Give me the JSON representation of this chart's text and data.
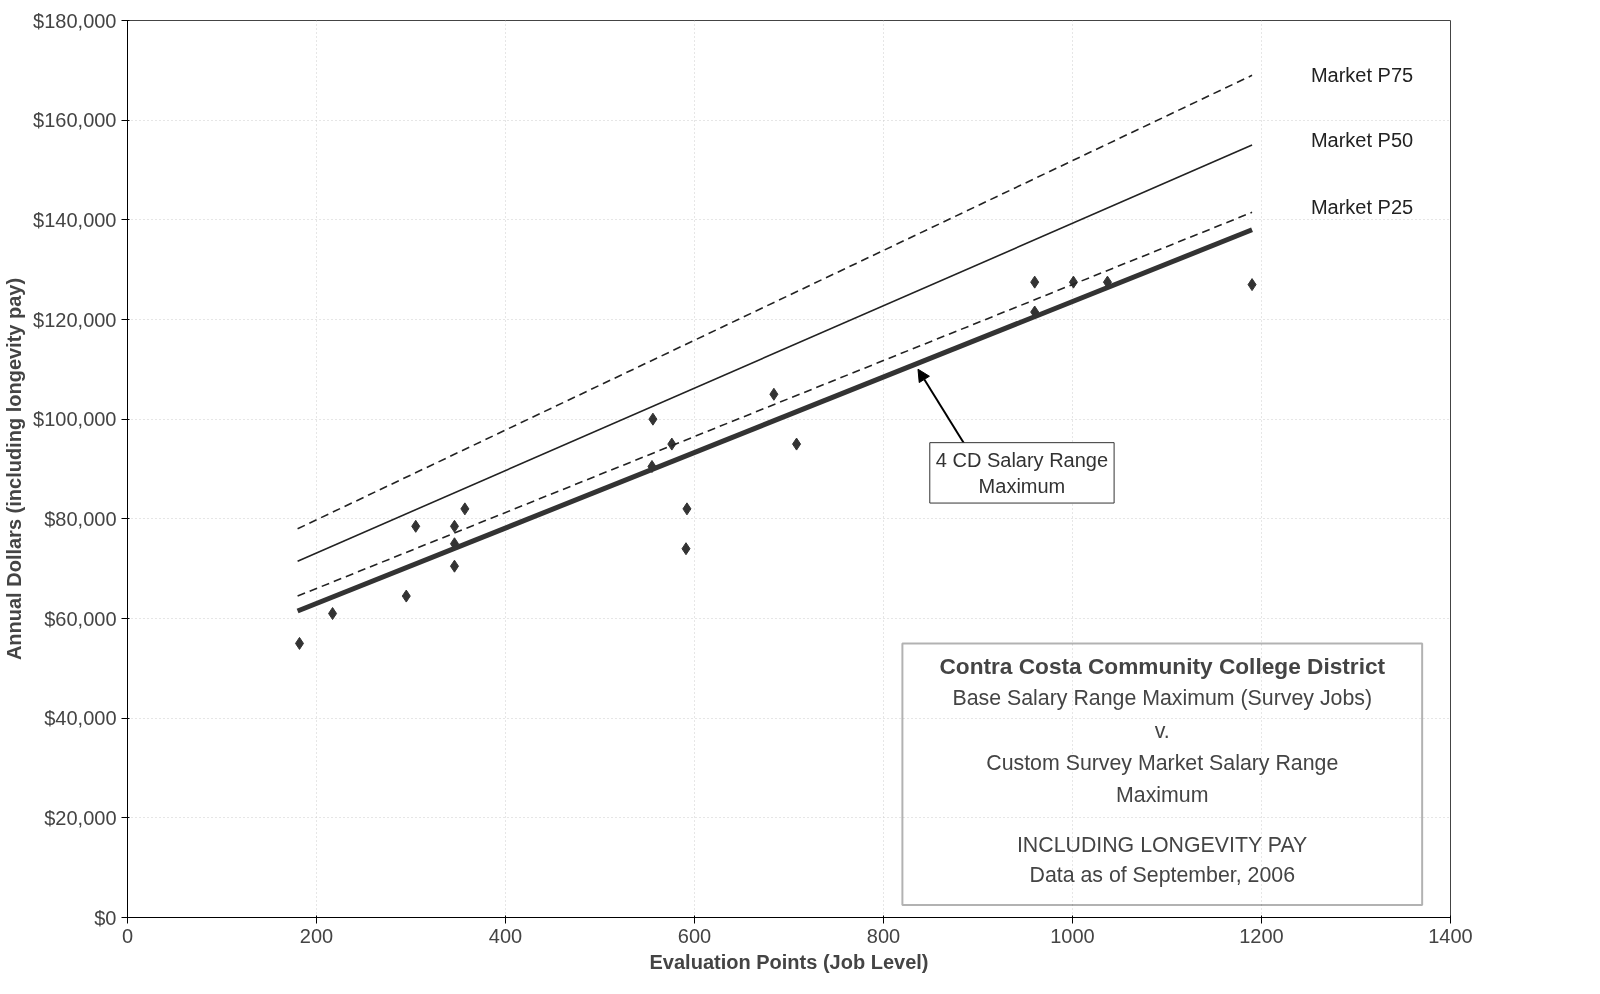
{
  "chart_data": {
    "type": "scatter",
    "xlabel": "Evaluation Points (Job Level)",
    "ylabel": "Annual Dollars (including longevity pay)",
    "xlim": [
      0,
      1400
    ],
    "xticks": [
      0,
      200,
      400,
      600,
      800,
      1000,
      1200,
      1400
    ],
    "ylim": [
      0,
      180000
    ],
    "yticks": [
      {
        "value": 0,
        "label": "$0"
      },
      {
        "value": 20000,
        "label": "$20,000"
      },
      {
        "value": 40000,
        "label": "$40,000"
      },
      {
        "value": 60000,
        "label": "$60,000"
      },
      {
        "value": 80000,
        "label": "$80,000"
      },
      {
        "value": 100000,
        "label": "$100,000"
      },
      {
        "value": 120000,
        "label": "$120,000"
      },
      {
        "value": 140000,
        "label": "$140,000"
      },
      {
        "value": 160000,
        "label": "$160,000"
      },
      {
        "value": 180000,
        "label": "$180,000"
      }
    ],
    "grid": true,
    "series": [
      {
        "marker": "diamond",
        "color": "#333333",
        "x": [
          182,
          217,
          295,
          305,
          346,
          346,
          346,
          357,
          556,
          555,
          576,
          592,
          591,
          684,
          708,
          960,
          960,
          1001,
          1037,
          1190
        ],
        "values": [
          55000,
          61000,
          64500,
          78500,
          78500,
          75000,
          70500,
          82000,
          100000,
          90500,
          95000,
          82000,
          74000,
          105000,
          95000,
          127500,
          121500,
          127500,
          127500,
          127000
        ]
      },
      {
        "type": "line",
        "name": "Market P75",
        "color": "#222222",
        "line_style": "dashed",
        "x": [
          180,
          1190
        ],
        "values": [
          78000,
          169000
        ]
      },
      {
        "type": "line",
        "name": "Market P50",
        "color": "#222222",
        "line_style": "solid",
        "x": [
          180,
          1190
        ],
        "values": [
          71500,
          155000
        ]
      },
      {
        "type": "line",
        "name": "Market P25",
        "color": "#222222",
        "line_style": "dashed",
        "x": [
          180,
          1190
        ],
        "values": [
          64500,
          141500
        ]
      },
      {
        "type": "line",
        "name": "4 CD Salary Range Maximum",
        "color": "#333333",
        "line_style": "solid",
        "x": [
          180,
          1190
        ],
        "values": [
          61500,
          138000
        ]
      }
    ],
    "annotations": [
      "Contra Costa Community College District",
      "Base Salary Range Maximum (Survey Jobs)",
      "v.",
      "Custom Survey Market Salary Range",
      "Maximum",
      "INCLUDING LONGEVITY PAY",
      "Data as of September, 2006"
    ]
  }
}
